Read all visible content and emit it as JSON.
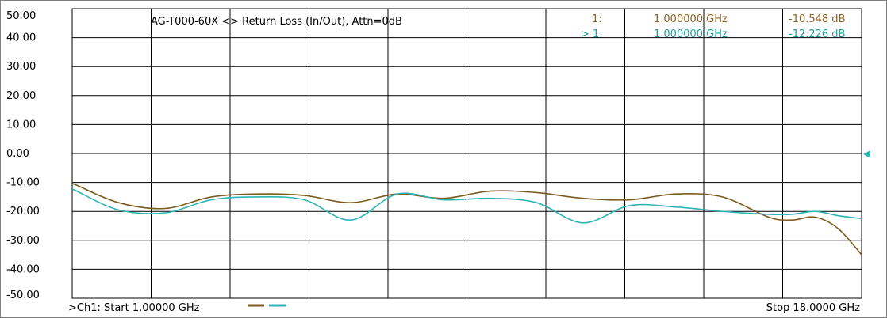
{
  "chart_data": {
    "type": "line",
    "title": "AG-T000-60X <> Return Loss (In/Out), Attn=0dB",
    "xlabel": "",
    "ylabel": "",
    "x_range_ghz": [
      1,
      18
    ],
    "ylim": [
      -50,
      50
    ],
    "y_tick_labels": [
      "50.00",
      "40.00",
      "30.00",
      "20.00",
      "10.00",
      "0.00",
      "-10.00",
      "-20.00",
      "-30.00",
      "-40.00",
      "-50.00"
    ],
    "grid": true,
    "series": [
      {
        "color": "#7b5b1e",
        "x": [
          1.0,
          1.1,
          2.0,
          3.0,
          4.0,
          5.0,
          6.0,
          7.0,
          8.0,
          9.0,
          10.0,
          11.0,
          12.0,
          13.0,
          14.0,
          15.0,
          16.0,
          16.5,
          17.0,
          17.5,
          18.0
        ],
        "y": [
          -10.5,
          -11.0,
          -17.0,
          -19.0,
          -15.0,
          -14.0,
          -14.5,
          -17.0,
          -14.0,
          -15.5,
          -13.0,
          -13.5,
          -15.5,
          -16.0,
          -14.0,
          -15.0,
          -22.0,
          -23.0,
          -22.0,
          -26.0,
          -35.0
        ]
      },
      {
        "color": "#2eb4b4",
        "x": [
          1.0,
          1.1,
          2.0,
          3.0,
          4.0,
          5.0,
          6.0,
          7.0,
          8.0,
          9.0,
          10.0,
          11.0,
          12.0,
          13.0,
          14.0,
          15.0,
          16.0,
          16.5,
          17.0,
          17.5,
          18.0
        ],
        "y": [
          -12.2,
          -13.0,
          -19.5,
          -20.5,
          -16.0,
          -15.0,
          -16.0,
          -23.0,
          -14.0,
          -16.0,
          -15.5,
          -17.0,
          -24.0,
          -18.0,
          -18.5,
          -20.0,
          -21.0,
          -21.0,
          -20.0,
          -21.5,
          -22.5
        ]
      }
    ]
  },
  "markers": [
    {
      "label": "1:",
      "freq": "1.000000 GHz",
      "value": "-10.548 dB",
      "color": "#8b6220"
    },
    {
      "label": "> 1:",
      "freq": "1.000000 GHz",
      "value": "-12.226 dB",
      "color": "#1f9ea0"
    }
  ],
  "footer": {
    "start": ">Ch1: Start  1.00000 GHz",
    "stop": "Stop  18.0000 GHz"
  },
  "colors": {
    "trace1": "#7b5b1e",
    "trace2": "#2eb4b4",
    "grid": "#000000",
    "ref_marker": "#2eb4b4"
  }
}
